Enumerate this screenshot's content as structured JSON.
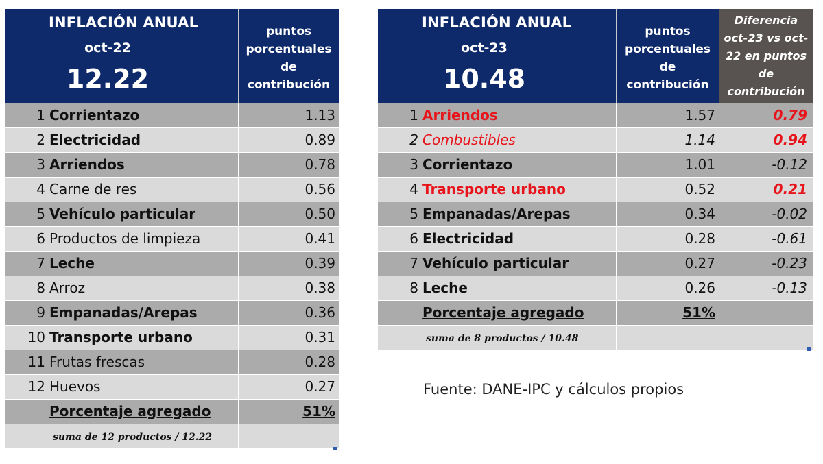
{
  "table1": {
    "title": "INFLACIÓN ANUAL",
    "period": "oct-22",
    "value": "12.22",
    "col_header": "puntos porcentuales de contribución",
    "rows": [
      {
        "rank": "1",
        "name": "Corrientazo",
        "value": "1.13",
        "bold": true
      },
      {
        "rank": "2",
        "name": "Electricidad",
        "value": "0.89",
        "bold": true
      },
      {
        "rank": "3",
        "name": "Arriendos",
        "value": "0.78",
        "bold": true
      },
      {
        "rank": "4",
        "name": "Carne de res",
        "value": "0.56",
        "bold": false
      },
      {
        "rank": "5",
        "name": "Vehículo particular",
        "value": "0.50",
        "bold": true
      },
      {
        "rank": "6",
        "name": "Productos de limpieza",
        "value": "0.41",
        "bold": false
      },
      {
        "rank": "7",
        "name": "Leche",
        "value": "0.39",
        "bold": true
      },
      {
        "rank": "8",
        "name": "Arroz",
        "value": "0.38",
        "bold": false
      },
      {
        "rank": "9",
        "name": "Empanadas/Arepas",
        "value": "0.36",
        "bold": true
      },
      {
        "rank": "10",
        "name": "Transporte urbano",
        "value": "0.31",
        "bold": true
      },
      {
        "rank": "11",
        "name": "Frutas frescas",
        "value": "0.28",
        "bold": false
      },
      {
        "rank": "12",
        "name": "Huevos",
        "value": "0.27",
        "bold": false
      }
    ],
    "total_label": "Porcentaje agregado",
    "total_value": "51%",
    "note": "suma de 12 productos / 12.22"
  },
  "table2": {
    "title": "INFLACIÓN ANUAL",
    "period": "oct-23",
    "value": "10.48",
    "col_header": "puntos porcentuales de contribución",
    "diff_header": "Diferencia oct-23 vs oct-22 en puntos de contribución",
    "rows": [
      {
        "rank": "1",
        "name": "Arriendos",
        "value": "1.57",
        "diff": "0.79",
        "style": "bold-red",
        "diff_pos": true
      },
      {
        "rank": "2",
        "name": "Combustibles",
        "value": "1.14",
        "diff": "0.94",
        "style": "italic-red",
        "diff_pos": true
      },
      {
        "rank": "3",
        "name": "Corrientazo",
        "value": "1.01",
        "diff": "-0.12",
        "style": "bold",
        "diff_pos": false
      },
      {
        "rank": "4",
        "name": "Transporte urbano",
        "value": "0.52",
        "diff": "0.21",
        "style": "bold-red",
        "diff_pos": true
      },
      {
        "rank": "5",
        "name": "Empanadas/Arepas",
        "value": "0.34",
        "diff": "-0.02",
        "style": "bold",
        "diff_pos": false
      },
      {
        "rank": "6",
        "name": "Electricidad",
        "value": "0.28",
        "diff": "-0.61",
        "style": "bold",
        "diff_pos": false
      },
      {
        "rank": "7",
        "name": "Vehículo particular",
        "value": "0.27",
        "diff": "-0.23",
        "style": "bold",
        "diff_pos": false
      },
      {
        "rank": "8",
        "name": "Leche",
        "value": "0.26",
        "diff": "-0.13",
        "style": "bold",
        "diff_pos": false
      }
    ],
    "total_label": "Porcentaje agregado",
    "total_value": "51%",
    "note": "suma de 8 productos / 10.48"
  },
  "source": "Fuente: DANE-IPC y cálculos propios",
  "colors": {
    "header_blue": "#0f2a6b",
    "header_gray": "#585250",
    "row_dark": "#ababab",
    "row_light": "#dadada",
    "highlight_red": "#e8141b"
  }
}
